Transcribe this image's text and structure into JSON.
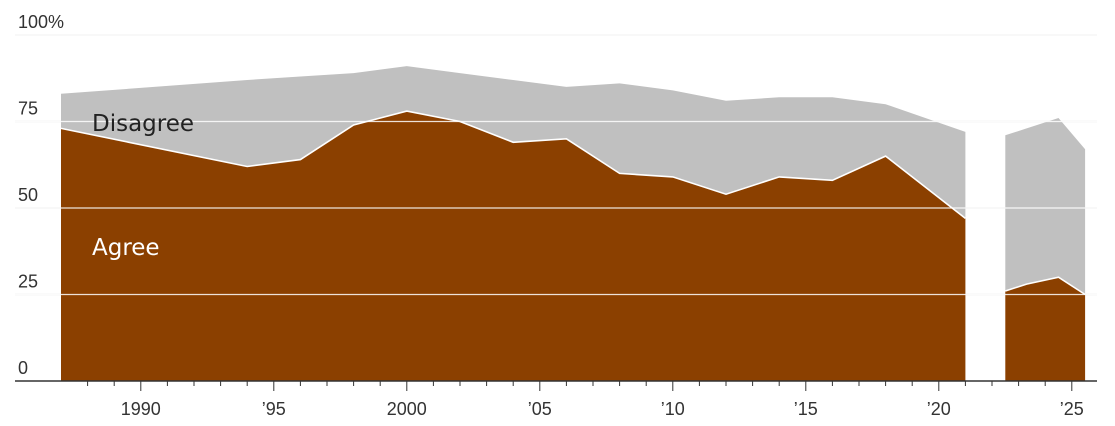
{
  "chart_data": {
    "type": "area",
    "stacked": true,
    "x_range": [
      1987,
      2025.6
    ],
    "ylim": [
      0,
      100
    ],
    "y_ticks": [
      {
        "value": 100,
        "label": "100%"
      },
      {
        "value": 75,
        "label": "75"
      },
      {
        "value": 50,
        "label": "50"
      },
      {
        "value": 25,
        "label": "25"
      },
      {
        "value": 0,
        "label": "0"
      }
    ],
    "x_ticks": [
      {
        "value": 1990,
        "label": "1990"
      },
      {
        "value": 1995,
        "label": "’95"
      },
      {
        "value": 2000,
        "label": "2000"
      },
      {
        "value": 2005,
        "label": "’05"
      },
      {
        "value": 2010,
        "label": "’10"
      },
      {
        "value": 2015,
        "label": "’15"
      },
      {
        "value": 2020,
        "label": "’20"
      },
      {
        "value": 2025,
        "label": "’25"
      }
    ],
    "grid": true,
    "colors": {
      "agree": "#8b4000",
      "disagree": "#c0c0c0"
    },
    "series": [
      {
        "name": "Agree",
        "segments": [
          [
            [
              1987,
              73
            ],
            [
              1994,
              62
            ],
            [
              1996,
              64
            ],
            [
              1998,
              74
            ],
            [
              2000,
              78
            ],
            [
              2002,
              75
            ],
            [
              2004,
              69
            ],
            [
              2006,
              70
            ],
            [
              2008,
              60
            ],
            [
              2010,
              59
            ],
            [
              2012,
              54
            ],
            [
              2014,
              59
            ],
            [
              2016,
              58
            ],
            [
              2018,
              65
            ],
            [
              2021,
              47
            ]
          ],
          [
            [
              2022.5,
              26
            ],
            [
              2023.3,
              28
            ],
            [
              2024.5,
              30
            ],
            [
              2025.5,
              25
            ]
          ]
        ]
      },
      {
        "name": "Disagree",
        "segments": [
          [
            [
              1987,
              10
            ],
            [
              1994,
              25
            ],
            [
              1996,
              24
            ],
            [
              1998,
              15
            ],
            [
              2000,
              13
            ],
            [
              2002,
              14
            ],
            [
              2004,
              18
            ],
            [
              2006,
              15
            ],
            [
              2008,
              26
            ],
            [
              2010,
              25
            ],
            [
              2012,
              27
            ],
            [
              2014,
              23
            ],
            [
              2016,
              24
            ],
            [
              2018,
              15
            ],
            [
              2021,
              25
            ]
          ],
          [
            [
              2022.5,
              45
            ],
            [
              2023.3,
              45
            ],
            [
              2024.5,
              46
            ],
            [
              2025.5,
              42
            ]
          ]
        ]
      }
    ],
    "labels": {
      "agree": "Agree",
      "disagree": "Disagree"
    }
  }
}
